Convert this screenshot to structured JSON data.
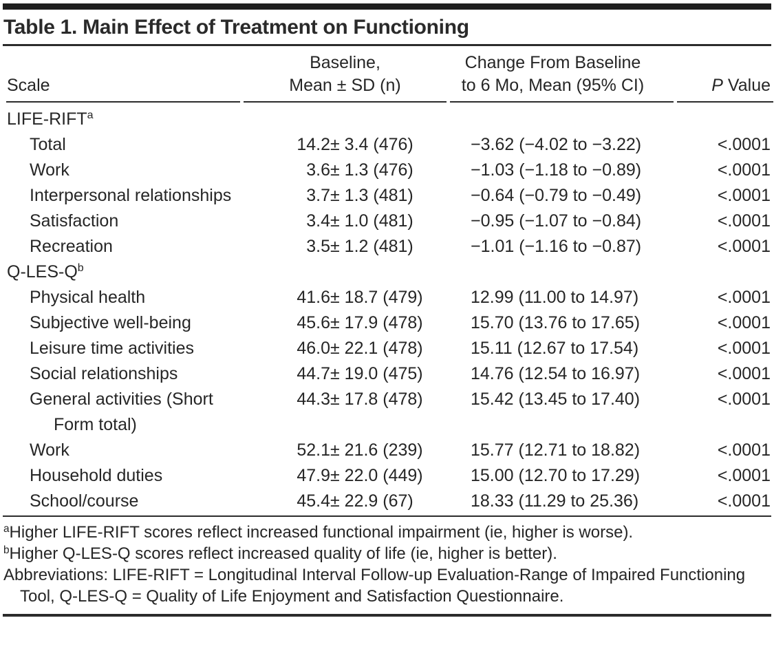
{
  "title": "Table 1. Main Effect of Treatment on Functioning",
  "colors": {
    "text": "#262626",
    "rule": "#2b2b2b",
    "topbar": "#1f1f1f",
    "background": "#ffffff"
  },
  "table": {
    "columns": {
      "scale": "Scale",
      "baseline_line1": "Baseline,",
      "baseline_line2": "Mean ± SD (n)",
      "change_line1": "Change From Baseline",
      "change_line2": "to 6 Mo, Mean (95% CI)",
      "p_italic": "P",
      "p_rest": " Value"
    },
    "rows": [
      {
        "type": "section",
        "label": "LIFE-RIFT",
        "sup": "a"
      },
      {
        "type": "data",
        "label": "Total",
        "baseline_mean": "14.2",
        "baseline_rest": "± 3.4 (476)",
        "change": "−3.62 (−4.02 to −3.22)",
        "p": "<.0001"
      },
      {
        "type": "data",
        "label": "Work",
        "baseline_mean": "3.6",
        "baseline_rest": "± 1.3 (476)",
        "change": "−1.03 (−1.18 to −0.89)",
        "p": "<.0001"
      },
      {
        "type": "data",
        "label": "Interpersonal relationships",
        "baseline_mean": "3.7",
        "baseline_rest": "± 1.3 (481)",
        "change": "−0.64 (−0.79 to −0.49)",
        "p": "<.0001"
      },
      {
        "type": "data",
        "label": "Satisfaction",
        "baseline_mean": "3.4",
        "baseline_rest": "± 1.0 (481)",
        "change": "−0.95 (−1.07 to −0.84)",
        "p": "<.0001"
      },
      {
        "type": "data",
        "label": "Recreation",
        "baseline_mean": "3.5",
        "baseline_rest": "± 1.2 (481)",
        "change": "−1.01 (−1.16 to −0.87)",
        "p": "<.0001"
      },
      {
        "type": "section",
        "label": "Q-LES-Q",
        "sup": "b"
      },
      {
        "type": "data",
        "label": "Physical health",
        "baseline_mean": "41.6",
        "baseline_rest": "± 18.7 (479)",
        "change": "12.99 (11.00 to 14.97)",
        "p": "<.0001"
      },
      {
        "type": "data",
        "label": "Subjective well-being",
        "baseline_mean": "45.6",
        "baseline_rest": "± 17.9 (478)",
        "change": "15.70 (13.76 to 17.65)",
        "p": "<.0001"
      },
      {
        "type": "data",
        "label": "Leisure time activities",
        "baseline_mean": "46.0",
        "baseline_rest": "± 22.1 (478)",
        "change": "15.11 (12.67 to 17.54)",
        "p": "<.0001"
      },
      {
        "type": "data",
        "label": "Social relationships",
        "baseline_mean": "44.7",
        "baseline_rest": "± 19.0 (475)",
        "change": "14.76 (12.54 to 16.97)",
        "p": "<.0001"
      },
      {
        "type": "data",
        "label": "General activities (Short Form total)",
        "baseline_mean": "44.3",
        "baseline_rest": "± 17.8 (478)",
        "change": "15.42 (13.45 to 17.40)",
        "p": "<.0001"
      },
      {
        "type": "data",
        "label": "Work",
        "baseline_mean": "52.1",
        "baseline_rest": "± 21.6 (239)",
        "change": "15.77 (12.71 to 18.82)",
        "p": "<.0001"
      },
      {
        "type": "data",
        "label": "Household duties",
        "baseline_mean": "47.9",
        "baseline_rest": "± 22.0 (449)",
        "change": "15.00 (12.70 to 17.29)",
        "p": "<.0001"
      },
      {
        "type": "data",
        "label": "School/course",
        "baseline_mean": "45.4",
        "baseline_rest": "± 22.9 (67)",
        "change": "18.33 (11.29 to 25.36)",
        "p": "<.0001"
      }
    ]
  },
  "footnotes": [
    {
      "sup": "a",
      "text": "Higher LIFE-RIFT scores reflect increased functional impairment (ie, higher is worse)."
    },
    {
      "sup": "b",
      "text": "Higher Q-LES-Q scores reflect increased quality of life (ie, higher is better)."
    },
    {
      "sup": "",
      "text": "Abbreviations: LIFE-RIFT = Longitudinal Interval Follow-up Evaluation-Range of Impaired Functioning Tool, Q-LES-Q = Quality of Life Enjoyment and Satisfaction Questionnaire."
    }
  ]
}
